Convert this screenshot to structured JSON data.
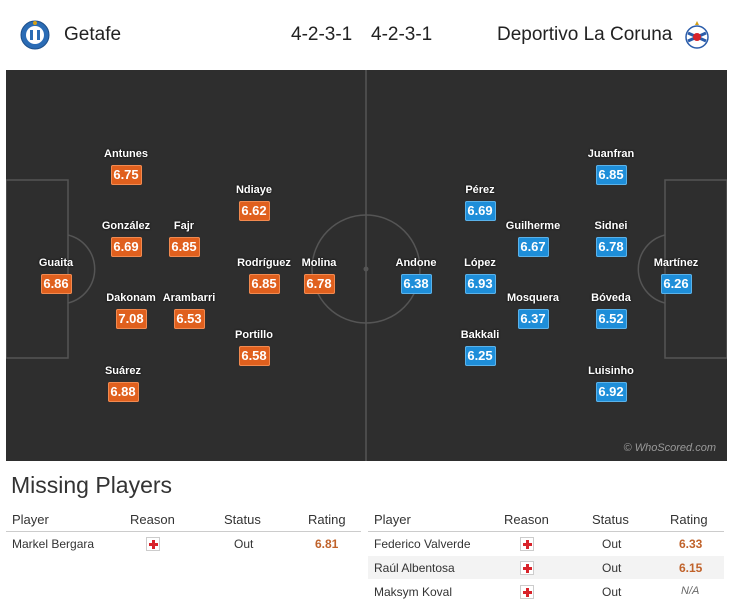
{
  "header": {
    "home_team": "Getafe",
    "away_team": "Deportivo La Coruna",
    "home_formation": "4-2-3-1",
    "away_formation": "4-2-3-1"
  },
  "pitch": {
    "watermark": "© WhoScored.com",
    "home_players": [
      {
        "name": "Guaita",
        "rating": "6.86"
      },
      {
        "name": "Antunes",
        "rating": "6.75"
      },
      {
        "name": "González",
        "rating": "6.69"
      },
      {
        "name": "Dakonam",
        "rating": "7.08"
      },
      {
        "name": "Suárez",
        "rating": "6.88"
      },
      {
        "name": "Fajr",
        "rating": "6.85"
      },
      {
        "name": "Arambarri",
        "rating": "6.53"
      },
      {
        "name": "Ndiaye",
        "rating": "6.62"
      },
      {
        "name": "Rodríguez",
        "rating": "6.85"
      },
      {
        "name": "Portillo",
        "rating": "6.58"
      },
      {
        "name": "Molina",
        "rating": "6.78"
      }
    ],
    "away_players": [
      {
        "name": "Andone",
        "rating": "6.38"
      },
      {
        "name": "Pérez",
        "rating": "6.69"
      },
      {
        "name": "López",
        "rating": "6.93"
      },
      {
        "name": "Bakkali",
        "rating": "6.25"
      },
      {
        "name": "Guilherme",
        "rating": "6.67"
      },
      {
        "name": "Mosquera",
        "rating": "6.37"
      },
      {
        "name": "Juanfran",
        "rating": "6.85"
      },
      {
        "name": "Sidnei",
        "rating": "6.78"
      },
      {
        "name": "Bóveda",
        "rating": "6.52"
      },
      {
        "name": "Luisinho",
        "rating": "6.92"
      },
      {
        "name": "Martínez",
        "rating": "6.26"
      }
    ]
  },
  "missing": {
    "title": "Missing Players",
    "columns": {
      "player": "Player",
      "reason": "Reason",
      "status": "Status",
      "rating": "Rating"
    },
    "home": [
      {
        "player": "Markel Bergara",
        "reason_icon": "injury-icon",
        "status": "Out",
        "rating": "6.81"
      }
    ],
    "away": [
      {
        "player": "Federico Valverde",
        "reason_icon": "injury-icon",
        "status": "Out",
        "rating": "6.33"
      },
      {
        "player": "Raúl Albentosa",
        "reason_icon": "injury-icon",
        "status": "Out",
        "rating": "6.15"
      },
      {
        "player": "Maksym Koval",
        "reason_icon": "injury-icon",
        "status": "Out",
        "rating": "N/A"
      }
    ]
  },
  "colors": {
    "home_rating": "#e0601e",
    "away_rating": "#1e8ed9",
    "pitch": "#2e2e2e",
    "missing_rating": "#c0622a"
  }
}
